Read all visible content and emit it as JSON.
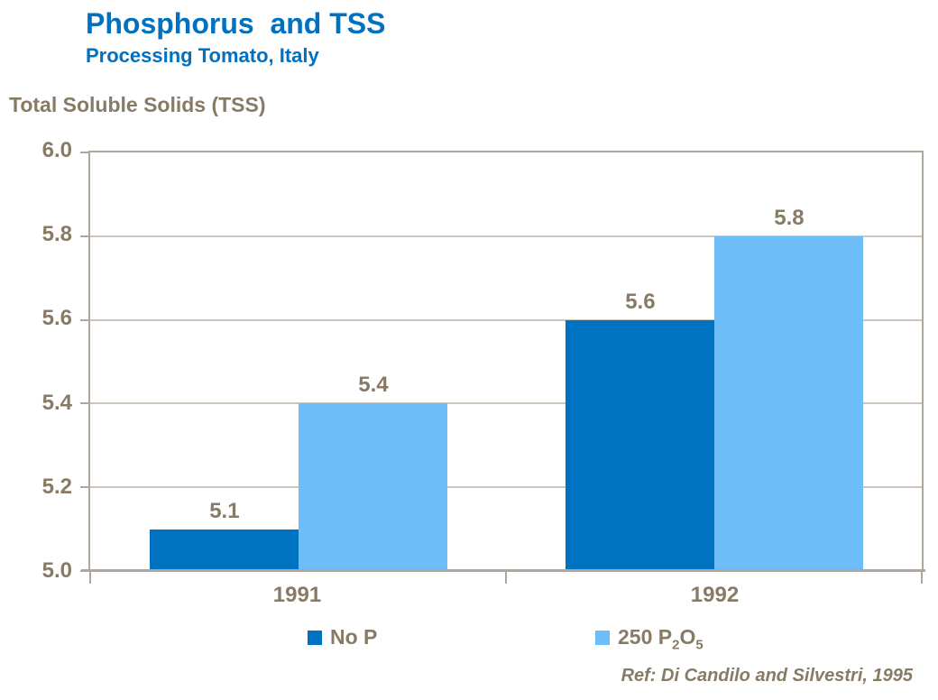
{
  "header": {
    "title": "Phosphorus  and TSS",
    "subtitle": "Processing Tomato, Italy"
  },
  "axis_title": "Total Soluble Solids (TSS)",
  "chart_data": {
    "type": "bar",
    "title": "Phosphorus and TSS",
    "subtitle": "Processing Tomato, Italy",
    "ylabel": "Total Soluble Solids (TSS)",
    "xlabel": "",
    "categories": [
      "1991",
      "1992"
    ],
    "series": [
      {
        "name": "No P",
        "values": [
          5.1,
          5.6
        ],
        "color": "#0072C2"
      },
      {
        "name": "250 P2O5",
        "values": [
          5.4,
          5.8
        ],
        "color": "#6DBDF9"
      }
    ],
    "ylim": [
      5.0,
      6.0
    ],
    "ytick_labels": [
      "6.0",
      "5.8",
      "5.6",
      "5.4",
      "5.2",
      "5.0"
    ],
    "grid": true,
    "legend_position": "bottom",
    "data_labels": [
      "5.1",
      "5.4",
      "5.6",
      "5.8"
    ]
  },
  "legend": {
    "series1": {
      "label": "No P"
    },
    "series2": {
      "prefix": "250 P",
      "sub2": "2",
      "o": "O",
      "sub5": "5"
    }
  },
  "footer": {
    "ref": "Ref: Di Candilo and Silvestri, 1995"
  },
  "colors": {
    "title_blue": "#0070C0",
    "text_brown": "#877B66",
    "dark_bar": "#0072C2",
    "light_bar": "#6DBDF9",
    "gridline": "#CCC5BC",
    "axis_frame": "#AFA69C"
  }
}
